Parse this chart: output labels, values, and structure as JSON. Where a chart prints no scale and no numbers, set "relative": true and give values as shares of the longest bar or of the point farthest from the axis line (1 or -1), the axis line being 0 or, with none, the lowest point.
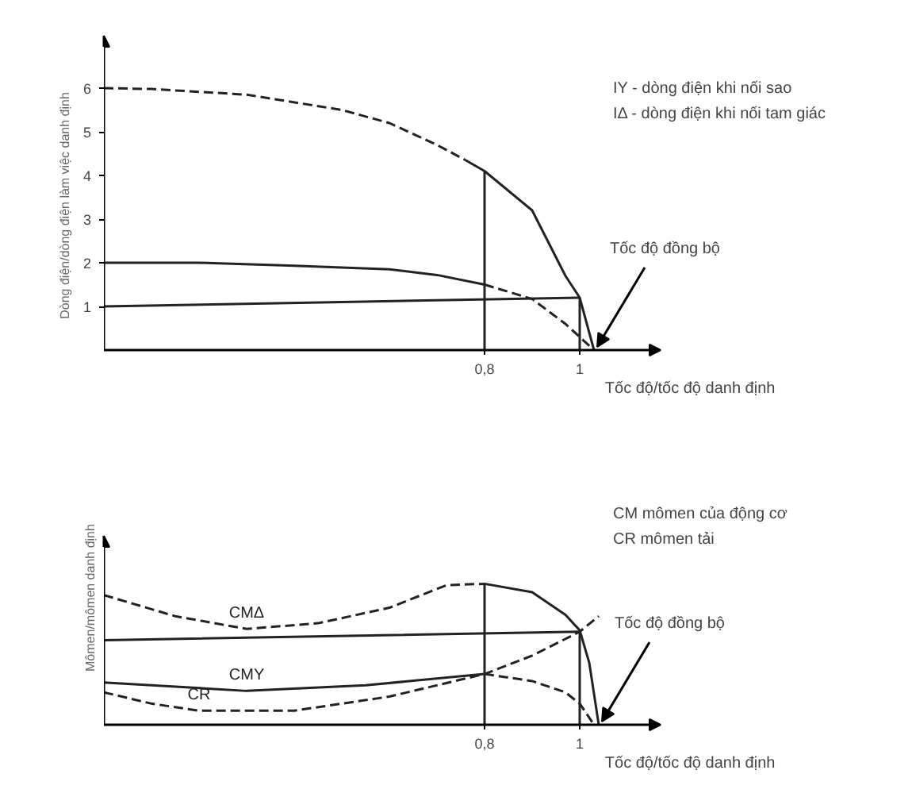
{
  "chart_data": [
    {
      "type": "line",
      "xlabel": "Tốc độ/tốc độ danh định",
      "ylabel": "Dòng điện/dòng điện làm việc danh định",
      "xlim": [
        0,
        1.17
      ],
      "ylim": [
        0,
        7.2
      ],
      "xticks": [
        {
          "value": 0.8,
          "label": "0,8"
        },
        1
      ],
      "yticks": [
        1,
        2,
        3,
        4,
        5,
        6
      ],
      "grid": false,
      "annotations": [
        "IY - dòng điện khi nối sao",
        "IΔ - dòng điện khi nối tam giác",
        {
          "text": "Tốc độ đồng bộ",
          "x": 1.03,
          "y": 0
        }
      ],
      "series": [
        {
          "color": "#222222",
          "line_style": "dashed",
          "x": [
            0,
            0.1,
            0.3,
            0.5,
            0.6,
            0.7,
            0.76
          ],
          "values": [
            6,
            5.98,
            5.85,
            5.5,
            5.2,
            4.7,
            4.35
          ]
        },
        {
          "color": "#222222",
          "line_style": "solid",
          "x": [
            0.76,
            0.8,
            0.9,
            0.97,
            1.0,
            1.03
          ],
          "values": [
            4.35,
            4.1,
            3.2,
            1.7,
            1.2,
            0
          ]
        },
        {
          "color": "#222222",
          "line_style": "solid",
          "x": [
            0,
            0.2,
            0.4,
            0.6,
            0.7,
            0.8
          ],
          "values": [
            2,
            2,
            1.93,
            1.85,
            1.72,
            1.5
          ]
        },
        {
          "color": "#222222",
          "line_style": "dashed",
          "x": [
            0.8,
            0.9,
            0.97,
            1.03
          ],
          "values": [
            1.5,
            1.17,
            0.6,
            0
          ]
        },
        {
          "color": "#222222",
          "line_style": "solid",
          "x": [
            0,
            0.5,
            1
          ],
          "values": [
            1,
            1.1,
            1.2
          ]
        },
        {
          "color": "#222222",
          "line_style": "solid",
          "x": [
            0.8,
            0.8
          ],
          "values": [
            0,
            4.1
          ]
        },
        {
          "color": "#222222",
          "line_style": "solid",
          "x": [
            1,
            1
          ],
          "values": [
            0,
            1.2
          ]
        }
      ]
    },
    {
      "type": "line",
      "relative": true,
      "xlabel": "Tốc độ/tốc độ danh định",
      "ylabel": "Mômen/mômen danh định",
      "xlim": [
        0,
        1.17
      ],
      "xticks": [
        {
          "value": 0.8,
          "label": "0,8"
        },
        1
      ],
      "grid": false,
      "annotations": [
        "CM    mômen của động cơ",
        "CR    mômen tải",
        {
          "text": "Tốc độ đồng bộ",
          "x": 1.04,
          "y": 0
        }
      ],
      "series": [
        {
          "name": "CMΔ",
          "color": "#222222",
          "line_style": "dashed",
          "x": [
            0,
            0.15,
            0.3,
            0.45,
            0.6,
            0.72,
            0.8
          ],
          "values": [
            0.92,
            0.77,
            0.68,
            0.72,
            0.83,
            0.99,
            1
          ]
        },
        {
          "color": "#222222",
          "line_style": "solid",
          "x": [
            0.8,
            0.8,
            0.9,
            0.97,
            1.0,
            1.02,
            1.04
          ],
          "values": [
            0,
            1,
            0.94,
            0.78,
            0.67,
            0.44,
            0
          ]
        },
        {
          "name": "CMY",
          "color": "#222222",
          "line_style": "solid",
          "x": [
            0,
            0.3,
            0.55,
            0.8
          ],
          "values": [
            0.3,
            0.24,
            0.28,
            0.36
          ]
        },
        {
          "color": "#222222",
          "line_style": "dashed",
          "x": [
            0.8,
            0.9,
            0.97,
            1.0,
            1.03
          ],
          "values": [
            0.36,
            0.31,
            0.23,
            0.15,
            0
          ]
        },
        {
          "name": "CR",
          "color": "#222222",
          "line_style": "dashed",
          "x": [
            0,
            0.1,
            0.2,
            0.4,
            0.6,
            0.8,
            0.9,
            1.0,
            1.04
          ],
          "values": [
            0.23,
            0.15,
            0.1,
            0.1,
            0.2,
            0.36,
            0.49,
            0.66,
            0.77
          ]
        },
        {
          "color": "#222222",
          "line_style": "solid",
          "x": [
            0,
            1,
            1
          ],
          "values": [
            0.6,
            0.66,
            0
          ]
        }
      ]
    }
  ]
}
